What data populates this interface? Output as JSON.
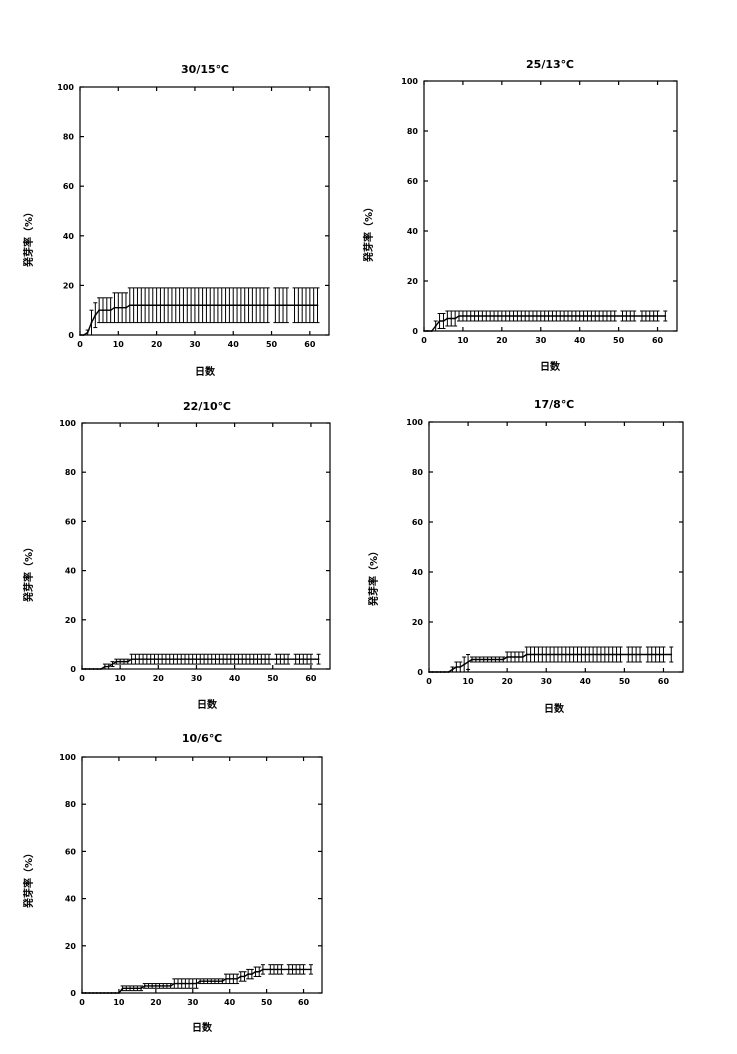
{
  "chart_data": [
    {
      "type": "line",
      "title": "30/15℃",
      "xlabel": "日数",
      "ylabel": "発芽率（%）",
      "xlim": [
        0,
        65
      ],
      "ylim": [
        0,
        100
      ],
      "xticks": [
        0,
        10,
        20,
        30,
        40,
        50,
        60
      ],
      "yticks": [
        0,
        20,
        40,
        60,
        80,
        100
      ],
      "series": [
        {
          "x": [
            0,
            1,
            2,
            3,
            4,
            5,
            6,
            7,
            8,
            9,
            10,
            11,
            12,
            13,
            14,
            15,
            16,
            17,
            18,
            19,
            20,
            21,
            22,
            23,
            24,
            25,
            26,
            27,
            28,
            29,
            30,
            31,
            32,
            33,
            34,
            35,
            36,
            37,
            38,
            39,
            40,
            41,
            42,
            43,
            44,
            45,
            46,
            47,
            48,
            49,
            51,
            52,
            53,
            54,
            56,
            57,
            58,
            59,
            60,
            61,
            62
          ],
          "y": [
            0,
            0,
            1,
            5,
            8,
            10,
            10,
            10,
            10,
            11,
            11,
            11,
            11,
            12,
            12,
            12,
            12,
            12,
            12,
            12,
            12,
            12,
            12,
            12,
            12,
            12,
            12,
            12,
            12,
            12,
            12,
            12,
            12,
            12,
            12,
            12,
            12,
            12,
            12,
            12,
            12,
            12,
            12,
            12,
            12,
            12,
            12,
            12,
            12,
            12,
            12,
            12,
            12,
            12,
            12,
            12,
            12,
            12,
            12,
            12,
            12
          ],
          "err": [
            0,
            0,
            1,
            5,
            5,
            5,
            5,
            5,
            5,
            6,
            6,
            6,
            6,
            7,
            7,
            7,
            7,
            7,
            7,
            7,
            7,
            7,
            7,
            7,
            7,
            7,
            7,
            7,
            7,
            7,
            7,
            7,
            7,
            7,
            7,
            7,
            7,
            7,
            7,
            7,
            7,
            7,
            7,
            7,
            7,
            7,
            7,
            7,
            7,
            7,
            7,
            7,
            7,
            7,
            7,
            7,
            7,
            7,
            7,
            7,
            7
          ]
        }
      ]
    },
    {
      "type": "line",
      "title": "25/13℃",
      "xlabel": "日数",
      "ylabel": "発芽率（%）",
      "xlim": [
        0,
        65
      ],
      "ylim": [
        0,
        100
      ],
      "xticks": [
        0,
        10,
        20,
        30,
        40,
        50,
        60
      ],
      "yticks": [
        0,
        20,
        40,
        60,
        80,
        100
      ],
      "series": [
        {
          "x": [
            0,
            1,
            2,
            3,
            4,
            5,
            6,
            7,
            8,
            9,
            10,
            11,
            12,
            13,
            14,
            15,
            16,
            17,
            18,
            19,
            20,
            21,
            22,
            23,
            24,
            25,
            26,
            27,
            28,
            29,
            30,
            31,
            32,
            33,
            34,
            35,
            36,
            37,
            38,
            39,
            40,
            41,
            42,
            43,
            44,
            45,
            46,
            47,
            48,
            49,
            51,
            52,
            53,
            54,
            56,
            57,
            58,
            59,
            60,
            62
          ],
          "y": [
            0,
            0,
            0,
            2,
            4,
            4,
            5,
            5,
            5,
            6,
            6,
            6,
            6,
            6,
            6,
            6,
            6,
            6,
            6,
            6,
            6,
            6,
            6,
            6,
            6,
            6,
            6,
            6,
            6,
            6,
            6,
            6,
            6,
            6,
            6,
            6,
            6,
            6,
            6,
            6,
            6,
            6,
            6,
            6,
            6,
            6,
            6,
            6,
            6,
            6,
            6,
            6,
            6,
            6,
            6,
            6,
            6,
            6,
            6,
            6
          ],
          "err": [
            0,
            0,
            0,
            2,
            3,
            3,
            3,
            3,
            3,
            2,
            2,
            2,
            2,
            2,
            2,
            2,
            2,
            2,
            2,
            2,
            2,
            2,
            2,
            2,
            2,
            2,
            2,
            2,
            2,
            2,
            2,
            2,
            2,
            2,
            2,
            2,
            2,
            2,
            2,
            2,
            2,
            2,
            2,
            2,
            2,
            2,
            2,
            2,
            2,
            2,
            2,
            2,
            2,
            2,
            2,
            2,
            2,
            2,
            2,
            2
          ]
        }
      ]
    },
    {
      "type": "line",
      "title": "22/10℃",
      "xlabel": "日数",
      "ylabel": "発芽率（%）",
      "xlim": [
        0,
        65
      ],
      "ylim": [
        0,
        100
      ],
      "xticks": [
        0,
        10,
        20,
        30,
        40,
        50,
        60
      ],
      "yticks": [
        0,
        20,
        40,
        60,
        80,
        100
      ],
      "series": [
        {
          "x": [
            0,
            1,
            2,
            3,
            4,
            5,
            6,
            7,
            8,
            9,
            10,
            11,
            12,
            13,
            14,
            15,
            16,
            17,
            18,
            19,
            20,
            21,
            22,
            23,
            24,
            25,
            26,
            27,
            28,
            29,
            30,
            31,
            32,
            33,
            34,
            35,
            36,
            37,
            38,
            39,
            40,
            41,
            42,
            43,
            44,
            45,
            46,
            47,
            48,
            49,
            51,
            52,
            53,
            54,
            56,
            57,
            58,
            59,
            60,
            62
          ],
          "y": [
            0,
            0,
            0,
            0,
            0,
            0,
            1,
            1,
            2,
            3,
            3,
            3,
            3,
            4,
            4,
            4,
            4,
            4,
            4,
            4,
            4,
            4,
            4,
            4,
            4,
            4,
            4,
            4,
            4,
            4,
            4,
            4,
            4,
            4,
            4,
            4,
            4,
            4,
            4,
            4,
            4,
            4,
            4,
            4,
            4,
            4,
            4,
            4,
            4,
            4,
            4,
            4,
            4,
            4,
            4,
            4,
            4,
            4,
            4,
            4
          ],
          "err": [
            0,
            0,
            0,
            0,
            0,
            0,
            1,
            1,
            1,
            1,
            1,
            1,
            1,
            2,
            2,
            2,
            2,
            2,
            2,
            2,
            2,
            2,
            2,
            2,
            2,
            2,
            2,
            2,
            2,
            2,
            2,
            2,
            2,
            2,
            2,
            2,
            2,
            2,
            2,
            2,
            2,
            2,
            2,
            2,
            2,
            2,
            2,
            2,
            2,
            2,
            2,
            2,
            2,
            2,
            2,
            2,
            2,
            2,
            2,
            2
          ]
        }
      ]
    },
    {
      "type": "line",
      "title": "17/8℃",
      "xlabel": "日数",
      "ylabel": "発芽率（%）",
      "xlim": [
        0,
        65
      ],
      "ylim": [
        0,
        100
      ],
      "xticks": [
        0,
        10,
        20,
        30,
        40,
        50,
        60
      ],
      "yticks": [
        0,
        20,
        40,
        60,
        80,
        100
      ],
      "series": [
        {
          "x": [
            0,
            1,
            2,
            3,
            4,
            5,
            6,
            7,
            8,
            9,
            10,
            11,
            12,
            13,
            14,
            15,
            16,
            17,
            18,
            19,
            20,
            21,
            22,
            23,
            24,
            25,
            26,
            27,
            28,
            29,
            30,
            31,
            32,
            33,
            34,
            35,
            36,
            37,
            38,
            39,
            40,
            41,
            42,
            43,
            44,
            45,
            46,
            47,
            48,
            49,
            51,
            52,
            53,
            54,
            56,
            57,
            58,
            59,
            60,
            62
          ],
          "y": [
            0,
            0,
            0,
            0,
            0,
            0,
            1,
            2,
            2,
            3,
            4,
            5,
            5,
            5,
            5,
            5,
            5,
            5,
            5,
            5,
            6,
            6,
            6,
            6,
            6,
            7,
            7,
            7,
            7,
            7,
            7,
            7,
            7,
            7,
            7,
            7,
            7,
            7,
            7,
            7,
            7,
            7,
            7,
            7,
            7,
            7,
            7,
            7,
            7,
            7,
            7,
            7,
            7,
            7,
            7,
            7,
            7,
            7,
            7,
            7
          ],
          "err": [
            0,
            0,
            0,
            0,
            0,
            0,
            1,
            2,
            2,
            3,
            3,
            1,
            1,
            1,
            1,
            1,
            1,
            1,
            1,
            1,
            2,
            2,
            2,
            2,
            2,
            3,
            3,
            3,
            3,
            3,
            3,
            3,
            3,
            3,
            3,
            3,
            3,
            3,
            3,
            3,
            3,
            3,
            3,
            3,
            3,
            3,
            3,
            3,
            3,
            3,
            3,
            3,
            3,
            3,
            3,
            3,
            3,
            3,
            3,
            3
          ]
        }
      ]
    },
    {
      "type": "line",
      "title": "10/6℃",
      "xlabel": "日数",
      "ylabel": "発芽率（%）",
      "xlim": [
        0,
        65
      ],
      "ylim": [
        0,
        100
      ],
      "xticks": [
        0,
        10,
        20,
        30,
        40,
        50,
        60
      ],
      "yticks": [
        0,
        20,
        40,
        60,
        80,
        100
      ],
      "series": [
        {
          "x": [
            0,
            1,
            2,
            3,
            4,
            5,
            6,
            7,
            8,
            9,
            10,
            11,
            12,
            13,
            14,
            15,
            16,
            17,
            18,
            19,
            20,
            21,
            22,
            23,
            24,
            25,
            26,
            27,
            28,
            29,
            30,
            31,
            32,
            33,
            34,
            35,
            36,
            37,
            38,
            39,
            40,
            41,
            42,
            43,
            44,
            45,
            46,
            47,
            48,
            49,
            51,
            52,
            53,
            54,
            56,
            57,
            58,
            59,
            60,
            62
          ],
          "y": [
            0,
            0,
            0,
            0,
            0,
            0,
            0,
            0,
            0,
            0,
            0,
            2,
            2,
            2,
            2,
            2,
            2,
            3,
            3,
            3,
            3,
            3,
            3,
            3,
            3,
            4,
            4,
            4,
            4,
            4,
            4,
            4,
            5,
            5,
            5,
            5,
            5,
            5,
            5,
            6,
            6,
            6,
            6,
            7,
            7,
            8,
            8,
            9,
            9,
            10,
            10,
            10,
            10,
            10,
            10,
            10,
            10,
            10,
            10,
            10
          ],
          "err": [
            0,
            0,
            0,
            0,
            0,
            0,
            0,
            0,
            0,
            0,
            0,
            1,
            1,
            1,
            1,
            1,
            1,
            1,
            1,
            1,
            1,
            1,
            1,
            1,
            1,
            2,
            2,
            2,
            2,
            2,
            2,
            2,
            1,
            1,
            1,
            1,
            1,
            1,
            1,
            2,
            2,
            2,
            2,
            2,
            2,
            2,
            2,
            2,
            2,
            2,
            2,
            2,
            2,
            2,
            2,
            2,
            2,
            2,
            2,
            2
          ]
        }
      ]
    }
  ]
}
